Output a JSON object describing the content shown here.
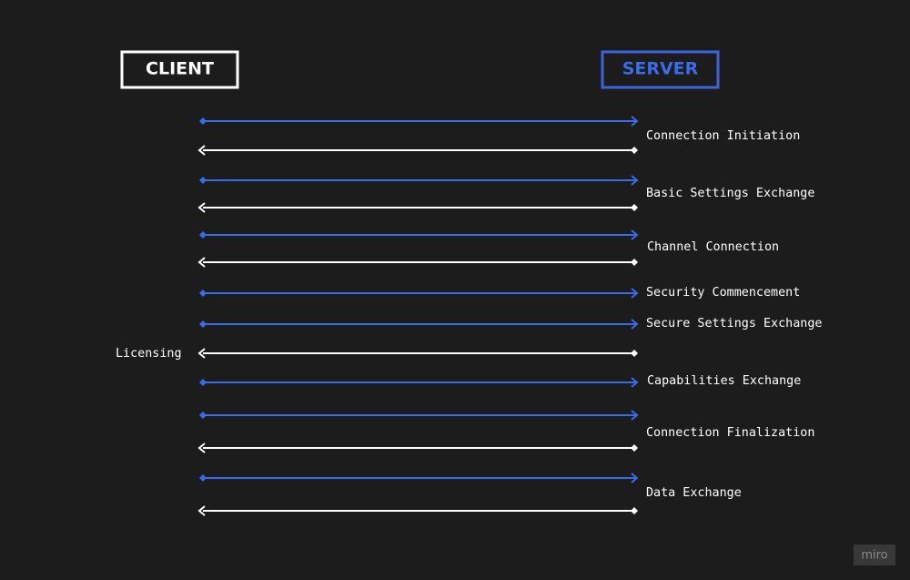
{
  "client": "CLIENT",
  "server": "SERVER",
  "phases": [
    "Connection Initiation",
    "Basic Settings Exchange",
    "Channel Connection",
    "Security Commencement",
    "Secure Settings Exchange",
    "Capabilities Exchange",
    "Connection Finalization",
    "Data Exchange"
  ],
  "licensing": "Licensing",
  "watermark": "miro"
}
